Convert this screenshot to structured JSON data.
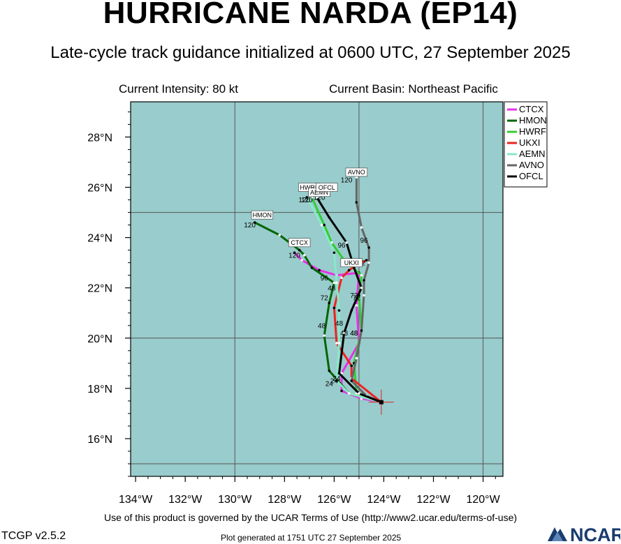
{
  "header": {
    "title": "HURRICANE NARDA (EP14)",
    "subtitle": "Late-cycle track guidance initialized at 0600 UTC, 27 September 2025",
    "current_intensity": "Current Intensity: 80 kt",
    "current_basin": "Current Basin: Northeast Pacific"
  },
  "footer": {
    "terms": "Use of this product is governed by the UCAR Terms of Use (http://www2.ucar.edu/terms-of-use)",
    "version": "TCGP v2.5.2",
    "generated": "Plot generated at 1751 UTC   27 September 2025",
    "logo_text": "NCAR"
  },
  "colors": {
    "ocean": "#99cccc",
    "grid": "#555555",
    "logo": "#1a3c6e"
  },
  "chart_data": {
    "type": "line",
    "map": true,
    "xlim": [
      -134.2,
      -119.2
    ],
    "ylim": [
      14.5,
      29.4
    ],
    "x_ticks": [
      -134,
      -132,
      -130,
      -128,
      -126,
      -124,
      -122,
      -120
    ],
    "x_tick_labels": [
      "134°W",
      "132°W",
      "130°W",
      "128°W",
      "126°W",
      "124°W",
      "122°W",
      "120°W"
    ],
    "y_ticks": [
      16,
      18,
      20,
      22,
      24,
      26,
      28
    ],
    "y_tick_labels": [
      "16°N",
      "18°N",
      "20°N",
      "22°N",
      "24°N",
      "26°N",
      "28°N"
    ],
    "grid_lon": [
      -130,
      -125,
      -120
    ],
    "grid_lat": [
      15,
      20,
      25
    ],
    "grid": true,
    "legend": "top-right",
    "initial_position": {
      "lon": -124.1,
      "lat": 17.45
    },
    "series": [
      {
        "name": "CTCX",
        "color": "#e633e6",
        "lon": [
          -124.1,
          -124.9,
          -125.7,
          -125.7,
          -125.0,
          -125.1,
          -125.0,
          -125.9,
          -126.6,
          -127.3,
          -127.6
        ],
        "lat": [
          17.45,
          17.6,
          17.9,
          18.6,
          19.8,
          21.3,
          22.6,
          22.5,
          22.7,
          23.1,
          23.4
        ],
        "labels": [
          {
            "text": "24",
            "lon": -125.9,
            "lat": 18.3
          },
          {
            "text": "72",
            "lon": -125.2,
            "lat": 21.6
          },
          {
            "text": "96",
            "lon": -126.4,
            "lat": 22.3
          },
          {
            "text": "120",
            "lon": -127.6,
            "lat": 23.2
          }
        ]
      },
      {
        "name": "HMON",
        "color": "#006600",
        "lon": [
          -124.1,
          -125.4,
          -126.2,
          -126.4,
          -126.2,
          -126.0,
          -126.9,
          -127.2,
          -127.4,
          -128.2,
          -129.2
        ],
        "lat": [
          17.45,
          17.8,
          18.7,
          20.1,
          21.4,
          22.2,
          22.8,
          23.3,
          23.5,
          24.1,
          24.6
        ],
        "labels": [
          {
            "text": "24",
            "lon": -126.2,
            "lat": 18.1
          },
          {
            "text": "48",
            "lon": -126.5,
            "lat": 20.4
          },
          {
            "text": "72",
            "lon": -126.4,
            "lat": 21.5
          },
          {
            "text": "120",
            "lon": -129.4,
            "lat": 24.4
          }
        ]
      },
      {
        "name": "HWRF",
        "color": "#33cc33",
        "lon": [
          -124.1,
          -125.1,
          -125.2,
          -124.9,
          -125.0,
          -124.9,
          -125.6,
          -126.1,
          -126.4,
          -126.9
        ],
        "lat": [
          17.45,
          17.8,
          19.0,
          20.3,
          21.7,
          22.5,
          23.1,
          23.8,
          24.5,
          25.6
        ],
        "labels": [
          {
            "text": "48",
            "lon": -125.2,
            "lat": 20.1
          },
          {
            "text": "120",
            "lon": -127.2,
            "lat": 25.4
          }
        ]
      },
      {
        "name": "UKXI",
        "color": "#ee2222",
        "lon": [
          -124.1,
          -125.3,
          -125.3,
          -125.9,
          -126.0,
          -125.7,
          -125.4,
          -125.1,
          -124.7
        ],
        "lat": [
          17.45,
          18.4,
          18.9,
          19.8,
          21.2,
          22.4,
          22.7,
          22.9,
          23.1
        ],
        "labels": [
          {
            "text": "48",
            "lon": -126.1,
            "lat": 21.9
          },
          {
            "text": "72",
            "lon": -124.9,
            "lat": 22.9
          }
        ]
      },
      {
        "name": "AEMN",
        "color": "#88e8c8",
        "lon": [
          -124.1,
          -125.4,
          -125.9,
          -125.8,
          -125.8,
          -125.9,
          -126.0,
          -126.5,
          -127.1
        ],
        "lat": [
          17.45,
          17.8,
          18.3,
          19.8,
          21.1,
          22.2,
          23.4,
          24.5,
          25.6
        ],
        "labels": [
          {
            "text": "48",
            "lon": -125.8,
            "lat": 20.5
          },
          {
            "text": "120",
            "lon": -127.1,
            "lat": 25.4
          }
        ]
      },
      {
        "name": "AVNO",
        "color": "#666666",
        "lon": [
          -124.1,
          -124.7,
          -125.3,
          -125.1,
          -124.9,
          -124.8,
          -124.8,
          -124.6,
          -124.6,
          -124.9,
          -125.1,
          -125.1
        ],
        "lat": [
          17.45,
          17.7,
          18.3,
          19.2,
          20.3,
          21.7,
          22.3,
          23.0,
          23.6,
          24.4,
          25.4,
          26.4
        ],
        "labels": [
          {
            "text": "48",
            "lon": -125.2,
            "lat": 20.1
          },
          {
            "text": "96",
            "lon": -124.8,
            "lat": 23.8
          },
          {
            "text": "120",
            "lon": -125.5,
            "lat": 26.2
          }
        ]
      },
      {
        "name": "OFCL",
        "color": "#000000",
        "lon": [
          -124.1,
          -125.0,
          -125.8,
          -125.6,
          -125.3,
          -124.9,
          -125.2,
          -125.5,
          -126.2,
          -126.7
        ],
        "lat": [
          17.45,
          17.8,
          18.6,
          20.2,
          21.1,
          22.0,
          22.8,
          23.8,
          24.8,
          25.6
        ],
        "labels": [
          {
            "text": "24",
            "lon": -126.0,
            "lat": 18.2
          },
          {
            "text": "48",
            "lon": -125.6,
            "lat": 20.1
          },
          {
            "text": "72",
            "lon": -125.1,
            "lat": 21.5
          },
          {
            "text": "96",
            "lon": -125.7,
            "lat": 23.6
          },
          {
            "text": "120",
            "lon": -126.6,
            "lat": 25.5
          }
        ]
      }
    ],
    "tags": [
      {
        "text": "AVNO",
        "lon": -125.1,
        "lat": 26.6
      },
      {
        "text": "HWRF",
        "lon": -127.0,
        "lat": 26.0
      },
      {
        "text": "AEMN",
        "lon": -126.6,
        "lat": 25.8
      },
      {
        "text": "OFCL",
        "lon": -126.3,
        "lat": 26.0
      },
      {
        "text": "HMON",
        "lon": -128.9,
        "lat": 24.9
      },
      {
        "text": "CTCX",
        "lon": -127.4,
        "lat": 23.8
      },
      {
        "text": "UKXI",
        "lon": -125.3,
        "lat": 23.0
      }
    ]
  }
}
